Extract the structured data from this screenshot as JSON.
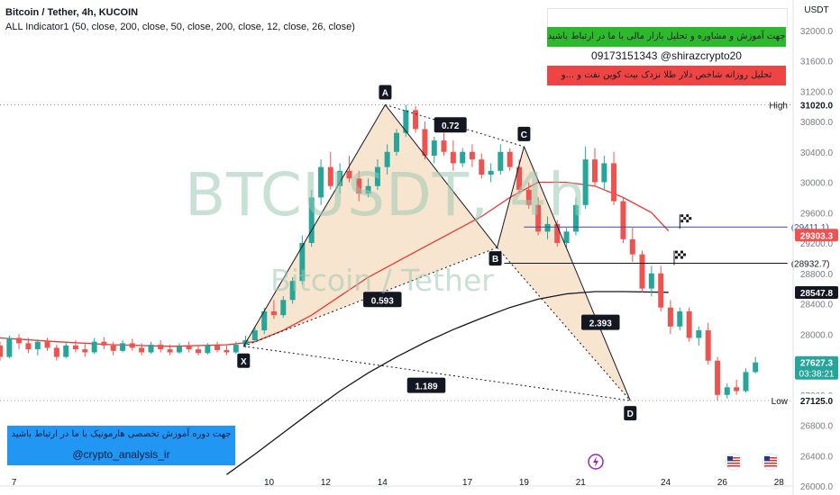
{
  "header": {
    "symbol_line": "Bitcoin / Tether, 4h, KUCOIN",
    "indicator_line": "ALL Indicator1 (50, close, 200, close, 50, close, 200, close, 12, close, 26, close)"
  },
  "watermark": {
    "ticker": "BTCUSDT, 4h",
    "name": "Bitcoin / Tether"
  },
  "info_boxes": {
    "line1": "جهت آموزش و مشاوره و تحلیل بازار مالی با ما در ارتباط باشید",
    "line2": "09173151343  @shirazcrypto20",
    "line3": "تحلیل روزانه شاخص دلار طلا نزدک بیت کوین نفت و ...و",
    "bottom_line1": "جهت دوره آموزش تخصصی هارمونیک با ما در ارتباط باشید",
    "bottom_line2": "@crypto_analysis_ir"
  },
  "colors": {
    "up": "#26a69a",
    "down": "#ef5350",
    "pattern_fill": "#f6dcc0",
    "ma50": "#e53935",
    "ma200": "#131722",
    "target": "#3949ab",
    "green_box": "#2eb82e",
    "red_box": "#ef4444",
    "blue_box": "#2196f3"
  },
  "chart_data": {
    "type": "candlestick",
    "currency": "USDT",
    "ylim": [
      26000,
      32400
    ],
    "y_ticks": [
      32000,
      31600,
      31200,
      30800,
      30400,
      30000,
      29600,
      29200,
      28800,
      28400,
      28000,
      27600,
      27200,
      26800,
      26400,
      26000
    ],
    "x_ticks": [
      "7",
      "10",
      "12",
      "14",
      "17",
      "19",
      "21",
      "24",
      "26",
      "28"
    ],
    "x_tick_pos": [
      1.5,
      10.5,
      12.5,
      14.5,
      17.5,
      19.5,
      21.5,
      24.5,
      26.5,
      28.5
    ],
    "x_domain": [
      1,
      29
    ],
    "harmonic": {
      "points": [
        {
          "label": "X",
          "t": 9.6,
          "price": 27840
        },
        {
          "label": "A",
          "t": 14.6,
          "price": 31020
        },
        {
          "label": "B",
          "t": 18.55,
          "price": 29140
        },
        {
          "label": "C",
          "t": 19.5,
          "price": 30470
        },
        {
          "label": "D",
          "t": 23.25,
          "price": 27125
        }
      ],
      "ratios": [
        {
          "label": "0.72",
          "t": 16.9,
          "price": 30750
        },
        {
          "label": "0.593",
          "t": 14.5,
          "price": 28450
        },
        {
          "label": "2.393",
          "t": 22.2,
          "price": 28150
        },
        {
          "label": "1.189",
          "t": 16.05,
          "price": 27320
        }
      ]
    },
    "targets": [
      {
        "label": "(29411.1)",
        "value": 29411.1,
        "t_start": 19.5,
        "t_end": 28.8,
        "flag_t": 25
      },
      {
        "label": "(28932.7)",
        "value": 28932.7,
        "t_start": 18.8,
        "t_end": 28.8,
        "flag_t": 24.8
      }
    ],
    "level_lines": [
      {
        "label": "High",
        "value": 31020.0
      },
      {
        "label": "Low",
        "value": 27125.0
      }
    ],
    "price_badges": [
      {
        "label": "29303.3",
        "value": 29303.3,
        "color": "#ef5350"
      },
      {
        "label": "28547.8",
        "value": 28547.8,
        "color": "#131722"
      },
      {
        "label": "27627.3",
        "value": 27627.3,
        "color": "#26a69a",
        "sub": "03:38:21"
      },
      {
        "label": "31020.0",
        "value": 31020.0,
        "color": "#131722"
      },
      {
        "label": "27125.0",
        "value": 27125.0,
        "color": "#131722"
      }
    ],
    "ma50": [
      [
        1,
        27950
      ],
      [
        3,
        27900
      ],
      [
        5,
        27860
      ],
      [
        7,
        27840
      ],
      [
        9,
        27860
      ],
      [
        10,
        27900
      ],
      [
        11,
        28050
      ],
      [
        12,
        28250
      ],
      [
        13,
        28500
      ],
      [
        14,
        28750
      ],
      [
        15,
        28950
      ],
      [
        16,
        29150
      ],
      [
        17,
        29350
      ],
      [
        18,
        29550
      ],
      [
        19,
        29800
      ],
      [
        20,
        30000
      ],
      [
        21,
        30000
      ],
      [
        22,
        29950
      ],
      [
        23,
        29800
      ],
      [
        24,
        29600
      ],
      [
        24.6,
        29360
      ]
    ],
    "ma200": [
      [
        9,
        26150
      ],
      [
        10,
        26420
      ],
      [
        11,
        26700
      ],
      [
        12,
        26980
      ],
      [
        13,
        27250
      ],
      [
        14,
        27490
      ],
      [
        15,
        27700
      ],
      [
        16,
        27890
      ],
      [
        17,
        28060
      ],
      [
        18,
        28210
      ],
      [
        19,
        28350
      ],
      [
        20,
        28460
      ],
      [
        21,
        28530
      ],
      [
        22,
        28560
      ],
      [
        23,
        28560
      ],
      [
        24.6,
        28550
      ]
    ],
    "candles": [
      [
        1,
        27850,
        27900,
        27650,
        27700
      ],
      [
        1.33,
        27700,
        27980,
        27680,
        27950
      ],
      [
        1.67,
        27950,
        28000,
        27800,
        27880
      ],
      [
        2,
        27880,
        27950,
        27750,
        27800
      ],
      [
        2.33,
        27800,
        27930,
        27720,
        27900
      ],
      [
        2.67,
        27900,
        27950,
        27780,
        27820
      ],
      [
        3,
        27820,
        27860,
        27650,
        27700
      ],
      [
        3.33,
        27700,
        27900,
        27680,
        27850
      ],
      [
        3.67,
        27850,
        27920,
        27760,
        27800
      ],
      [
        4,
        27800,
        27880,
        27700,
        27760
      ],
      [
        4.33,
        27760,
        27950,
        27740,
        27900
      ],
      [
        4.67,
        27900,
        27960,
        27800,
        27850
      ],
      [
        5,
        27850,
        27900,
        27720,
        27780
      ],
      [
        5.33,
        27780,
        27920,
        27760,
        27880
      ],
      [
        5.67,
        27880,
        27940,
        27780,
        27820
      ],
      [
        6,
        27820,
        27880,
        27720,
        27760
      ],
      [
        6.33,
        27760,
        27900,
        27740,
        27860
      ],
      [
        6.67,
        27860,
        27920,
        27760,
        27800
      ],
      [
        7,
        27800,
        27860,
        27720,
        27760
      ],
      [
        7.33,
        27760,
        27880,
        27740,
        27840
      ],
      [
        7.67,
        27840,
        27900,
        27760,
        27800
      ],
      [
        8,
        27800,
        27860,
        27720,
        27750
      ],
      [
        8.33,
        27750,
        27880,
        27730,
        27850
      ],
      [
        8.67,
        27850,
        27900,
        27760,
        27790
      ],
      [
        9,
        27790,
        27850,
        27720,
        27760
      ],
      [
        9.33,
        27760,
        27900,
        27740,
        27860
      ],
      [
        9.67,
        27860,
        27980,
        27820,
        27920
      ],
      [
        10,
        27920,
        28100,
        27900,
        28050
      ],
      [
        10.33,
        28050,
        28350,
        28000,
        28300
      ],
      [
        10.67,
        28300,
        28450,
        28200,
        28250
      ],
      [
        11,
        28250,
        28500,
        28220,
        28450
      ],
      [
        11.33,
        28450,
        28750,
        28400,
        28700
      ],
      [
        11.67,
        28700,
        29300,
        28650,
        29200
      ],
      [
        12,
        29200,
        29900,
        29150,
        29800
      ],
      [
        12.33,
        29800,
        30300,
        29700,
        30200
      ],
      [
        12.67,
        30200,
        30400,
        29900,
        29950
      ],
      [
        13,
        29950,
        30250,
        29850,
        30150
      ],
      [
        13.33,
        30150,
        30350,
        30000,
        30050
      ],
      [
        13.67,
        30050,
        30150,
        29750,
        29850
      ],
      [
        14,
        29850,
        30050,
        29800,
        29950
      ],
      [
        14.33,
        29950,
        30300,
        29900,
        30200
      ],
      [
        14.67,
        30200,
        30500,
        30100,
        30400
      ],
      [
        15,
        30400,
        30700,
        30350,
        30650
      ],
      [
        15.33,
        30650,
        31020,
        30600,
        30950
      ],
      [
        15.67,
        30950,
        31000,
        30650,
        30700
      ],
      [
        16,
        30700,
        30800,
        30300,
        30350
      ],
      [
        16.33,
        30350,
        30600,
        30250,
        30550
      ],
      [
        16.67,
        30550,
        30650,
        30350,
        30400
      ],
      [
        17,
        30400,
        30550,
        30150,
        30250
      ],
      [
        17.33,
        30250,
        30450,
        30200,
        30400
      ],
      [
        17.67,
        30400,
        30500,
        30200,
        30300
      ],
      [
        18,
        30300,
        30380,
        30050,
        30100
      ],
      [
        18.33,
        30100,
        30250,
        30000,
        30150
      ],
      [
        18.67,
        30150,
        30500,
        30100,
        30400
      ],
      [
        19,
        30400,
        30450,
        30150,
        30200
      ],
      [
        19.33,
        30200,
        30300,
        29850,
        29900
      ],
      [
        19.67,
        29900,
        30000,
        29650,
        29700
      ],
      [
        20,
        29700,
        29800,
        29300,
        29350
      ],
      [
        20.33,
        29350,
        29550,
        29250,
        29450
      ],
      [
        20.67,
        29450,
        29500,
        29150,
        29200
      ],
      [
        21,
        29200,
        29400,
        29140,
        29350
      ],
      [
        21.33,
        29350,
        29800,
        29300,
        29700
      ],
      [
        21.67,
        29700,
        30470,
        29650,
        30300
      ],
      [
        22,
        30300,
        30450,
        29950,
        30000
      ],
      [
        22.33,
        30000,
        30350,
        29900,
        30250
      ],
      [
        22.67,
        30250,
        30400,
        29700,
        29750
      ],
      [
        23,
        29750,
        29800,
        29200,
        29250
      ],
      [
        23.33,
        29250,
        29400,
        28950,
        29050
      ],
      [
        23.67,
        29050,
        29100,
        28550,
        28600
      ],
      [
        24,
        28600,
        28900,
        28500,
        28800
      ],
      [
        24.33,
        28800,
        28900,
        28300,
        28350
      ],
      [
        24.67,
        28350,
        28450,
        28000,
        28100
      ],
      [
        25,
        28100,
        28350,
        28050,
        28300
      ],
      [
        25.33,
        28300,
        28350,
        27900,
        27950
      ],
      [
        25.67,
        27950,
        28100,
        27850,
        28050
      ],
      [
        26,
        28050,
        28150,
        27600,
        27650
      ],
      [
        26.33,
        27650,
        27700,
        27125,
        27200
      ],
      [
        26.67,
        27200,
        27350,
        27150,
        27300
      ],
      [
        27,
        27300,
        27400,
        27200,
        27250
      ],
      [
        27.33,
        27250,
        27550,
        27230,
        27500
      ],
      [
        27.67,
        27500,
        27700,
        27480,
        27627
      ]
    ]
  }
}
